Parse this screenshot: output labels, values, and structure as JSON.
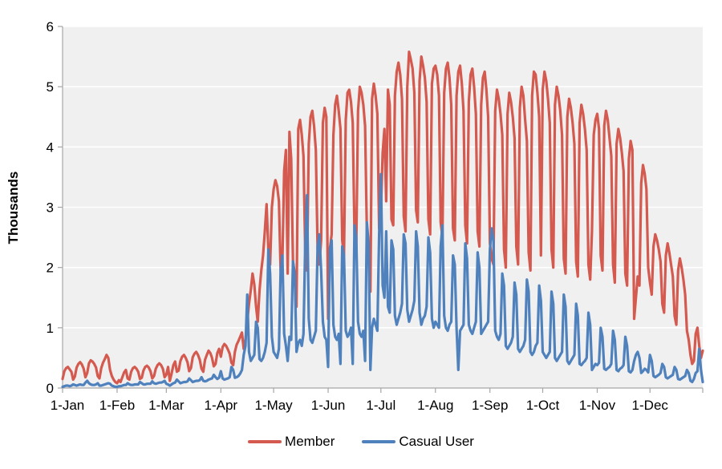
{
  "chart_data": {
    "type": "line",
    "title": "",
    "xlabel": "",
    "ylabel": "Thousands",
    "ylim": [
      0,
      6
    ],
    "y_ticks": [
      0,
      1,
      2,
      3,
      4,
      5,
      6
    ],
    "x_tick_labels": [
      "1-Jan",
      "1-Feb",
      "1-Mar",
      "1-Apr",
      "1-May",
      "1-Jun",
      "1-Jul",
      "1-Aug",
      "1-Sep",
      "1-Oct",
      "1-Nov",
      "1-Dec"
    ],
    "month_start_days": [
      0,
      31,
      59,
      90,
      120,
      151,
      181,
      212,
      243,
      273,
      304,
      334
    ],
    "x_unit": "day of year (daily values, in thousands of rides)",
    "grid": "on",
    "legend_position": "bottom",
    "plot_area_color": "#F0F0F0",
    "gridline_color": "#FFFFFF",
    "axis_color": "#A6A6A6",
    "text_color": "#000000",
    "series": [
      {
        "name": "Member",
        "color": "#D45A50",
        "values": [
          0.15,
          0.28,
          0.33,
          0.35,
          0.31,
          0.27,
          0.14,
          0.19,
          0.34,
          0.4,
          0.43,
          0.39,
          0.32,
          0.18,
          0.25,
          0.41,
          0.46,
          0.44,
          0.4,
          0.34,
          0.2,
          0.16,
          0.33,
          0.42,
          0.48,
          0.55,
          0.5,
          0.3,
          0.2,
          0.14,
          0.1,
          0.08,
          0.13,
          0.1,
          0.18,
          0.26,
          0.3,
          0.16,
          0.14,
          0.27,
          0.33,
          0.35,
          0.32,
          0.27,
          0.15,
          0.17,
          0.29,
          0.35,
          0.37,
          0.34,
          0.28,
          0.16,
          0.2,
          0.32,
          0.38,
          0.41,
          0.38,
          0.32,
          0.18,
          0.22,
          0.35,
          0.12,
          0.24,
          0.38,
          0.44,
          0.27,
          0.29,
          0.45,
          0.52,
          0.55,
          0.5,
          0.43,
          0.28,
          0.33,
          0.51,
          0.57,
          0.6,
          0.55,
          0.47,
          0.32,
          0.27,
          0.47,
          0.55,
          0.62,
          0.58,
          0.5,
          0.36,
          0.4,
          0.58,
          0.65,
          0.52,
          0.68,
          0.73,
          0.7,
          0.64,
          0.57,
          0.42,
          0.38,
          0.6,
          0.72,
          0.78,
          0.85,
          0.92,
          0.65,
          0.8,
          1.1,
          1.4,
          1.62,
          1.9,
          1.72,
          1.35,
          1.1,
          1.62,
          1.95,
          2.2,
          2.6,
          3.05,
          2.3,
          2.05,
          3.0,
          3.3,
          3.45,
          3.35,
          3.1,
          1.95,
          2.1,
          3.6,
          3.95,
          1.9,
          4.25,
          3.8,
          2.1,
          1.85,
          1.35,
          4.3,
          4.45,
          4.2,
          3.85,
          2.25,
          1.95,
          4.05,
          4.5,
          4.6,
          4.35,
          3.95,
          2.3,
          2.05,
          2.45,
          4.4,
          4.65,
          4.5,
          1.15,
          2.3,
          2.55,
          4.2,
          4.7,
          4.85,
          4.6,
          4.3,
          2.45,
          2.2,
          4.45,
          4.9,
          4.95,
          4.75,
          4.4,
          2.55,
          2.35,
          4.6,
          5.0,
          4.9,
          4.7,
          4.35,
          2.6,
          2.3,
          1.6,
          4.8,
          5.05,
          4.85,
          4.55,
          2.65,
          2.95,
          3.9,
          4.3,
          3.1,
          4.95,
          4.7,
          2.8,
          2.7,
          4.85,
          5.25,
          5.4,
          5.2,
          4.8,
          2.85,
          2.6,
          5.0,
          5.58,
          5.45,
          5.3,
          4.9,
          2.95,
          2.75,
          5.1,
          5.5,
          5.35,
          5.15,
          4.75,
          2.8,
          2.55,
          5.05,
          5.3,
          5.35,
          5.2,
          4.85,
          2.75,
          2.5,
          4.9,
          5.3,
          5.4,
          5.15,
          4.7,
          2.65,
          2.45,
          4.85,
          5.25,
          5.35,
          5.05,
          4.6,
          2.7,
          2.4,
          4.75,
          5.2,
          5.3,
          5.0,
          4.55,
          2.6,
          2.35,
          4.7,
          5.15,
          5.25,
          4.95,
          4.5,
          2.4,
          2.15,
          2.05,
          4.6,
          4.95,
          4.8,
          4.55,
          4.2,
          2.3,
          2.0,
          4.55,
          4.9,
          4.75,
          4.5,
          4.15,
          2.35,
          2.05,
          4.65,
          5.0,
          4.85,
          4.45,
          4.1,
          2.25,
          1.95,
          4.85,
          5.25,
          5.2,
          4.9,
          4.5,
          2.2,
          4.95,
          5.25,
          5.1,
          4.8,
          4.4,
          2.3,
          2.0,
          4.7,
          5.0,
          4.85,
          4.6,
          4.2,
          2.15,
          1.9,
          4.5,
          4.8,
          4.65,
          4.4,
          4.05,
          2.1,
          1.85,
          4.4,
          4.7,
          4.55,
          4.3,
          3.95,
          2.05,
          1.8,
          2.6,
          4.2,
          4.45,
          4.55,
          4.3,
          2.2,
          1.95,
          4.35,
          4.6,
          4.45,
          4.15,
          3.85,
          2.05,
          1.75,
          4.05,
          4.3,
          4.15,
          3.9,
          3.6,
          1.9,
          1.7,
          3.8,
          4.1,
          3.95,
          1.15,
          1.5,
          1.85,
          1.7,
          3.4,
          3.7,
          3.55,
          3.3,
          2.0,
          1.75,
          1.55,
          2.35,
          2.55,
          2.45,
          2.3,
          2.1,
          1.4,
          1.25,
          2.2,
          2.4,
          2.25,
          2.05,
          1.85,
          1.2,
          1.05,
          1.95,
          2.15,
          2.0,
          1.8,
          1.55,
          0.95,
          0.8,
          0.55,
          0.4,
          0.45,
          0.9,
          1.0,
          0.7,
          0.5,
          0.62
        ]
      },
      {
        "name": "Casual User",
        "color": "#4F81BD",
        "values": [
          0.02,
          0.03,
          0.04,
          0.04,
          0.03,
          0.04,
          0.06,
          0.05,
          0.04,
          0.05,
          0.06,
          0.05,
          0.05,
          0.09,
          0.12,
          0.08,
          0.06,
          0.05,
          0.05,
          0.06,
          0.08,
          0.04,
          0.04,
          0.05,
          0.06,
          0.07,
          0.08,
          0.07,
          0.04,
          0.03,
          0.02,
          0.02,
          0.03,
          0.03,
          0.04,
          0.05,
          0.05,
          0.08,
          0.06,
          0.05,
          0.05,
          0.06,
          0.06,
          0.06,
          0.1,
          0.08,
          0.06,
          0.06,
          0.07,
          0.07,
          0.07,
          0.11,
          0.08,
          0.07,
          0.08,
          0.09,
          0.09,
          0.1,
          0.12,
          0.07,
          0.06,
          0.04,
          0.06,
          0.08,
          0.09,
          0.14,
          0.11,
          0.08,
          0.09,
          0.1,
          0.1,
          0.11,
          0.16,
          0.13,
          0.1,
          0.11,
          0.12,
          0.12,
          0.13,
          0.18,
          0.12,
          0.11,
          0.12,
          0.14,
          0.15,
          0.16,
          0.22,
          0.18,
          0.15,
          0.17,
          0.28,
          0.16,
          0.14,
          0.15,
          0.16,
          0.18,
          0.35,
          0.3,
          0.17,
          0.18,
          0.2,
          0.24,
          0.3,
          0.55,
          0.7,
          1.55,
          0.6,
          0.45,
          0.5,
          0.55,
          1.1,
          1.0,
          0.48,
          0.45,
          0.5,
          0.6,
          0.75,
          2.3,
          1.9,
          0.85,
          0.6,
          0.55,
          0.5,
          0.65,
          1.95,
          2.2,
          0.9,
          0.7,
          0.45,
          0.85,
          0.8,
          2.1,
          1.9,
          0.6,
          0.75,
          0.8,
          0.7,
          0.9,
          2.4,
          3.2,
          1.15,
          0.8,
          0.75,
          0.85,
          0.95,
          2.35,
          2.55,
          1.95,
          1.1,
          0.85,
          0.8,
          0.35,
          2.3,
          2.45,
          1.05,
          0.85,
          0.8,
          0.9,
          0.4,
          2.35,
          2.2,
          0.95,
          0.85,
          0.9,
          1.0,
          0.4,
          2.7,
          2.5,
          1.1,
          0.9,
          0.85,
          0.95,
          0.45,
          2.75,
          2.4,
          0.3,
          1.0,
          1.15,
          1.05,
          0.95,
          2.55,
          3.55,
          1.7,
          1.5,
          2.6,
          1.35,
          1.25,
          2.45,
          2.3,
          1.2,
          1.05,
          1.15,
          1.25,
          1.4,
          2.55,
          2.4,
          1.3,
          1.1,
          1.2,
          1.3,
          1.45,
          2.6,
          2.35,
          1.25,
          1.05,
          1.15,
          1.2,
          1.35,
          2.5,
          2.25,
          1.15,
          1.0,
          1.1,
          1.05,
          1.0,
          2.35,
          2.7,
          1.2,
          1.0,
          0.95,
          1.05,
          1.1,
          2.2,
          2.05,
          1.0,
          0.3,
          0.95,
          1.0,
          1.05,
          2.4,
          2.15,
          1.05,
          0.95,
          0.9,
          1.0,
          1.1,
          2.25,
          2.0,
          0.9,
          0.95,
          1.0,
          1.05,
          1.1,
          2.3,
          2.65,
          2.45,
          0.95,
          0.85,
          0.8,
          0.9,
          1.9,
          1.7,
          0.7,
          0.65,
          0.7,
          0.75,
          0.85,
          1.75,
          1.55,
          0.65,
          0.6,
          0.65,
          0.7,
          0.8,
          1.8,
          1.6,
          0.6,
          0.55,
          0.6,
          0.7,
          0.75,
          1.7,
          1.45,
          0.6,
          0.55,
          0.5,
          0.55,
          0.6,
          1.6,
          1.4,
          0.5,
          0.45,
          0.5,
          0.55,
          0.6,
          1.55,
          1.35,
          0.45,
          0.4,
          0.45,
          0.5,
          0.55,
          1.4,
          1.2,
          0.4,
          0.38,
          0.42,
          0.45,
          0.5,
          1.25,
          1.05,
          0.3,
          0.35,
          0.4,
          0.38,
          0.42,
          1.0,
          0.85,
          0.32,
          0.3,
          0.33,
          0.35,
          0.4,
          0.95,
          0.8,
          0.3,
          0.28,
          0.32,
          0.34,
          0.38,
          0.85,
          0.7,
          0.28,
          0.26,
          0.3,
          0.45,
          0.55,
          0.6,
          0.5,
          0.25,
          0.28,
          0.32,
          0.3,
          0.26,
          0.55,
          0.45,
          0.2,
          0.18,
          0.2,
          0.22,
          0.25,
          0.4,
          0.35,
          0.18,
          0.16,
          0.18,
          0.2,
          0.22,
          0.35,
          0.3,
          0.15,
          0.14,
          0.16,
          0.18,
          0.2,
          0.3,
          0.25,
          0.12,
          0.1,
          0.15,
          0.25,
          0.28,
          0.65,
          0.3,
          0.1
        ]
      }
    ]
  }
}
